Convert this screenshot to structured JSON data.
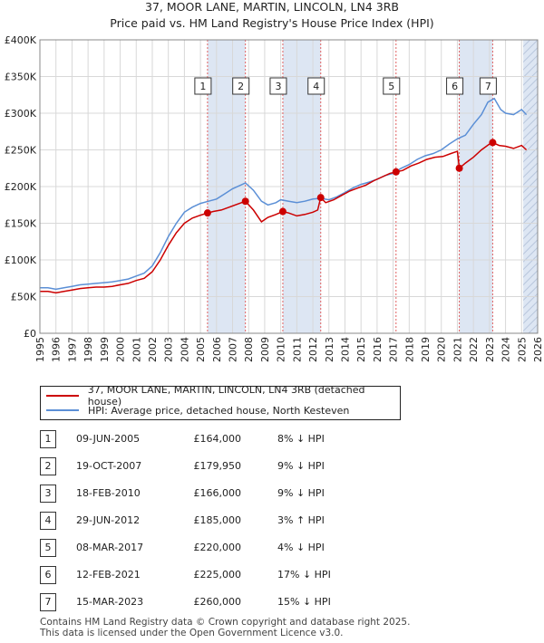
{
  "title_line1": "37, MOOR LANE, MARTIN, LINCOLN, LN4 3RB",
  "title_line2": "Price paid vs. HM Land Registry's House Price Index (HPI)",
  "legend": {
    "series1": "37, MOOR LANE, MARTIN, LINCOLN, LN4 3RB (detached house)",
    "series2": "HPI: Average price, detached house, North Kesteven"
  },
  "colors": {
    "property": "#cc0000",
    "hpi": "#5b8fd6",
    "band": "#dde6f3",
    "vline": "#e06060"
  },
  "transactions": [
    {
      "num": "1",
      "date": "09-JUN-2005",
      "price": "£164,000",
      "hpi": "8% ↓ HPI"
    },
    {
      "num": "2",
      "date": "19-OCT-2007",
      "price": "£179,950",
      "hpi": "9% ↓ HPI"
    },
    {
      "num": "3",
      "date": "18-FEB-2010",
      "price": "£166,000",
      "hpi": "9% ↓ HPI"
    },
    {
      "num": "4",
      "date": "29-JUN-2012",
      "price": "£185,000",
      "hpi": "3% ↑ HPI"
    },
    {
      "num": "5",
      "date": "08-MAR-2017",
      "price": "£220,000",
      "hpi": "4% ↓ HPI"
    },
    {
      "num": "6",
      "date": "12-FEB-2021",
      "price": "£225,000",
      "hpi": "17% ↓ HPI"
    },
    {
      "num": "7",
      "date": "15-MAR-2023",
      "price": "£260,000",
      "hpi": "15% ↓ HPI"
    }
  ],
  "footer_line1": "Contains HM Land Registry data © Crown copyright and database right 2025.",
  "footer_line2": "This data is licensed under the Open Government Licence v3.0.",
  "chart_data": {
    "type": "line",
    "xlim": [
      1995,
      2026
    ],
    "ylim": [
      0,
      400000
    ],
    "yticks": [
      0,
      50000,
      100000,
      150000,
      200000,
      250000,
      300000,
      350000,
      400000
    ],
    "ytick_labels": [
      "£0",
      "£50K",
      "£100K",
      "£150K",
      "£200K",
      "£250K",
      "£300K",
      "£350K",
      "£400K"
    ],
    "xticks": [
      1995,
      1996,
      1997,
      1998,
      1999,
      2000,
      2001,
      2002,
      2003,
      2004,
      2005,
      2006,
      2007,
      2008,
      2009,
      2010,
      2011,
      2012,
      2013,
      2014,
      2015,
      2016,
      2017,
      2018,
      2019,
      2020,
      2021,
      2022,
      2023,
      2024,
      2025,
      2026
    ],
    "grid": true,
    "future_from": 2025.1,
    "series": [
      {
        "name": "HPI: Average price, detached house, North Kesteven",
        "x": [
          1995.0,
          1995.5,
          1996.0,
          1996.5,
          1997.0,
          1997.5,
          1998.0,
          1998.5,
          1999.0,
          1999.5,
          2000.0,
          2000.5,
          2001.0,
          2001.5,
          2002.0,
          2002.5,
          2003.0,
          2003.5,
          2004.0,
          2004.5,
          2005.0,
          2005.5,
          2006.0,
          2006.5,
          2007.0,
          2007.5,
          2007.8,
          2008.3,
          2008.8,
          2009.2,
          2009.7,
          2010.0,
          2010.5,
          2011.0,
          2011.5,
          2012.0,
          2012.5,
          2013.0,
          2013.5,
          2014.0,
          2014.5,
          2015.0,
          2015.5,
          2016.0,
          2016.5,
          2017.0,
          2017.5,
          2018.0,
          2018.5,
          2019.0,
          2019.5,
          2020.0,
          2020.5,
          2021.0,
          2021.5,
          2022.0,
          2022.5,
          2022.9,
          2023.3,
          2023.7,
          2024.0,
          2024.5,
          2025.0,
          2025.3
        ],
        "values": [
          62000,
          62000,
          60000,
          62000,
          64000,
          66000,
          67000,
          68000,
          69000,
          70000,
          72000,
          74000,
          78000,
          82000,
          92000,
          110000,
          132000,
          150000,
          165000,
          172000,
          177000,
          180000,
          183000,
          190000,
          197000,
          202000,
          205000,
          195000,
          180000,
          175000,
          178000,
          182000,
          180000,
          178000,
          180000,
          183000,
          184000,
          182000,
          186000,
          192000,
          198000,
          203000,
          206000,
          210000,
          215000,
          218000,
          225000,
          230000,
          237000,
          242000,
          245000,
          250000,
          258000,
          265000,
          270000,
          285000,
          298000,
          315000,
          320000,
          305000,
          300000,
          298000,
          305000,
          298000
        ]
      },
      {
        "name": "37, MOOR LANE, MARTIN, LINCOLN, LN4 3RB (detached house)",
        "x": [
          1995.0,
          1995.5,
          1996.0,
          1996.5,
          1997.0,
          1997.5,
          1998.0,
          1998.5,
          1999.0,
          1999.5,
          2000.0,
          2000.5,
          2001.0,
          2001.5,
          2002.0,
          2002.5,
          2003.0,
          2003.5,
          2004.0,
          2004.5,
          2005.0,
          2005.44,
          2005.8,
          2006.3,
          2006.8,
          2007.3,
          2007.8,
          2008.3,
          2008.8,
          2009.2,
          2009.7,
          2010.13,
          2010.5,
          2011.0,
          2011.5,
          2012.0,
          2012.3,
          2012.49,
          2012.8,
          2013.3,
          2013.8,
          2014.3,
          2014.8,
          2015.3,
          2015.8,
          2016.3,
          2016.8,
          2017.18,
          2017.6,
          2018.1,
          2018.6,
          2019.1,
          2019.6,
          2020.1,
          2020.6,
          2021.0,
          2021.12,
          2021.5,
          2022.0,
          2022.5,
          2023.0,
          2023.2,
          2023.6,
          2024.0,
          2024.5,
          2025.0,
          2025.3
        ],
        "values": [
          57000,
          57000,
          55000,
          57000,
          59000,
          61000,
          62000,
          63000,
          63000,
          64000,
          66000,
          68000,
          72000,
          75000,
          84000,
          100000,
          120000,
          137000,
          150000,
          157000,
          161000,
          164000,
          166000,
          168000,
          172000,
          176000,
          180000,
          168000,
          152000,
          158000,
          162000,
          166000,
          164000,
          160000,
          162000,
          165000,
          168000,
          185000,
          178000,
          182000,
          188000,
          194000,
          198000,
          202000,
          208000,
          213000,
          218000,
          220000,
          222000,
          228000,
          232000,
          237000,
          240000,
          241000,
          245000,
          248000,
          225000,
          232000,
          240000,
          250000,
          258000,
          260000,
          256000,
          255000,
          252000,
          256000,
          250000
        ]
      }
    ],
    "sales": [
      {
        "label": "1",
        "x": 2005.44,
        "y": 164000
      },
      {
        "label": "2",
        "x": 2007.8,
        "y": 179950
      },
      {
        "label": "3",
        "x": 2010.13,
        "y": 166000
      },
      {
        "label": "4",
        "x": 2012.49,
        "y": 185000
      },
      {
        "label": "5",
        "x": 2017.18,
        "y": 220000
      },
      {
        "label": "6",
        "x": 2021.12,
        "y": 225000
      },
      {
        "label": "7",
        "x": 2023.2,
        "y": 260000
      }
    ],
    "bands": [
      [
        2005.44,
        2007.8
      ],
      [
        2010.13,
        2012.49
      ],
      [
        2021.12,
        2023.2
      ]
    ]
  }
}
